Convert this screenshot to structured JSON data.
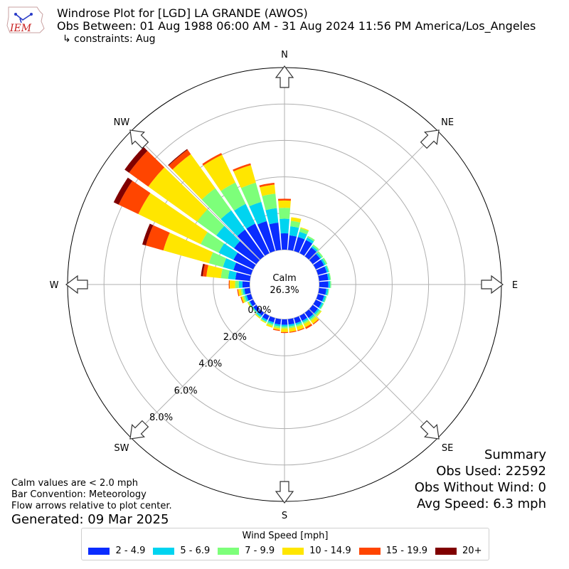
{
  "header": {
    "title": "Windrose Plot for [LGD] LA GRANDE (AWOS)",
    "obs_between": "Obs Between: 01 Aug 1988 06:00 AM - 31 Aug 2024 11:56 PM America/Los_Angeles",
    "constraints": "↳ constraints: Aug",
    "logo_text": "IEM"
  },
  "summary": {
    "heading": "Summary",
    "obs_used": "Obs Used: 22592",
    "obs_without_wind": "Obs Without Wind: 0",
    "avg_speed": "Avg Speed: 6.3 mph"
  },
  "notes": {
    "calm_note": "Calm values are < 2.0 mph",
    "bar_convention": "Bar Convention: Meteorology",
    "flow_arrows": "Flow arrows relative to plot center.",
    "generated": "Generated: 09 Mar 2025"
  },
  "chart_data": {
    "type": "windrose",
    "calm_label": "Calm",
    "calm_value": "26.3%",
    "radial_ticks": [
      0,
      2,
      4,
      6,
      8
    ],
    "radial_tick_labels": [
      "0.0%",
      "2.0%",
      "4.0%",
      "6.0%",
      "8.0%"
    ],
    "rmax": 10,
    "compass": [
      "N",
      "NE",
      "E",
      "SE",
      "S",
      "SW",
      "W",
      "NW"
    ],
    "legend_title": "Wind Speed [mph]",
    "bins": [
      {
        "label": "2 - 4.9",
        "color": "#0a2cff"
      },
      {
        "label": "5 - 6.9",
        "color": "#00d4f0"
      },
      {
        "label": "7 - 9.9",
        "color": "#7dff7a"
      },
      {
        "label": "10 - 14.9",
        "color": "#ffe600"
      },
      {
        "label": "15 - 19.9",
        "color": "#ff4500"
      },
      {
        "label": "20+",
        "color": "#800000"
      }
    ],
    "directions": [
      0,
      10,
      20,
      30,
      40,
      50,
      60,
      70,
      80,
      90,
      100,
      110,
      120,
      130,
      140,
      150,
      160,
      170,
      180,
      190,
      200,
      210,
      220,
      230,
      240,
      250,
      260,
      270,
      280,
      290,
      300,
      310,
      320,
      330,
      340,
      350
    ],
    "values": [
      [
        0.9,
        0.8,
        0.6,
        0.4,
        0.1,
        0.0
      ],
      [
        0.8,
        0.5,
        0.3,
        0.2,
        0.0,
        0.0
      ],
      [
        0.8,
        0.3,
        0.2,
        0.05,
        0.0,
        0.0
      ],
      [
        0.8,
        0.15,
        0.1,
        0.0,
        0.0,
        0.0
      ],
      [
        0.6,
        0.1,
        0.1,
        0.0,
        0.0,
        0.0
      ],
      [
        0.5,
        0.1,
        0.1,
        0.0,
        0.0,
        0.0
      ],
      [
        0.5,
        0.1,
        0.1,
        0.0,
        0.0,
        0.0
      ],
      [
        0.5,
        0.1,
        0.05,
        0.0,
        0.0,
        0.0
      ],
      [
        0.5,
        0.1,
        0.05,
        0.0,
        0.0,
        0.0
      ],
      [
        0.5,
        0.1,
        0.05,
        0.0,
        0.0,
        0.0
      ],
      [
        0.4,
        0.1,
        0.05,
        0.0,
        0.0,
        0.0
      ],
      [
        0.35,
        0.1,
        0.05,
        0.0,
        0.0,
        0.0
      ],
      [
        0.35,
        0.1,
        0.05,
        0.0,
        0.0,
        0.0
      ],
      [
        0.35,
        0.1,
        0.1,
        0.05,
        0.0,
        0.0
      ],
      [
        0.35,
        0.1,
        0.1,
        0.2,
        0.05,
        0.0
      ],
      [
        0.3,
        0.1,
        0.1,
        0.2,
        0.1,
        0.0
      ],
      [
        0.3,
        0.1,
        0.1,
        0.2,
        0.05,
        0.0
      ],
      [
        0.3,
        0.1,
        0.1,
        0.2,
        0.05,
        0.0
      ],
      [
        0.3,
        0.1,
        0.1,
        0.2,
        0.05,
        0.0
      ],
      [
        0.3,
        0.1,
        0.1,
        0.1,
        0.05,
        0.0
      ],
      [
        0.25,
        0.1,
        0.1,
        0.1,
        0.0,
        0.0
      ],
      [
        0.25,
        0.1,
        0.05,
        0.05,
        0.0,
        0.0
      ],
      [
        0.2,
        0.1,
        0.05,
        0.05,
        0.0,
        0.0
      ],
      [
        0.2,
        0.05,
        0.05,
        0.0,
        0.0,
        0.0
      ],
      [
        0.2,
        0.05,
        0.05,
        0.05,
        0.0,
        0.0
      ],
      [
        0.25,
        0.1,
        0.1,
        0.1,
        0.05,
        0.0
      ],
      [
        0.3,
        0.1,
        0.1,
        0.15,
        0.05,
        0.0
      ],
      [
        0.4,
        0.2,
        0.2,
        0.3,
        0.05,
        0.0
      ],
      [
        0.8,
        0.4,
        0.4,
        0.8,
        0.2,
        0.1
      ],
      [
        1.0,
        0.6,
        0.8,
        2.6,
        1.0,
        0.2
      ],
      [
        1.2,
        0.9,
        1.1,
        3.8,
        1.2,
        0.3
      ],
      [
        1.5,
        1.2,
        1.3,
        3.3,
        1.3,
        0.3
      ],
      [
        1.8,
        1.3,
        1.5,
        2.3,
        0.3,
        0.05
      ],
      [
        1.8,
        1.2,
        1.3,
        1.7,
        0.1,
        0.0
      ],
      [
        1.7,
        1.1,
        1.1,
        1.0,
        0.1,
        0.0
      ],
      [
        1.5,
        0.8,
        0.8,
        0.5,
        0.1,
        0.0
      ]
    ]
  }
}
